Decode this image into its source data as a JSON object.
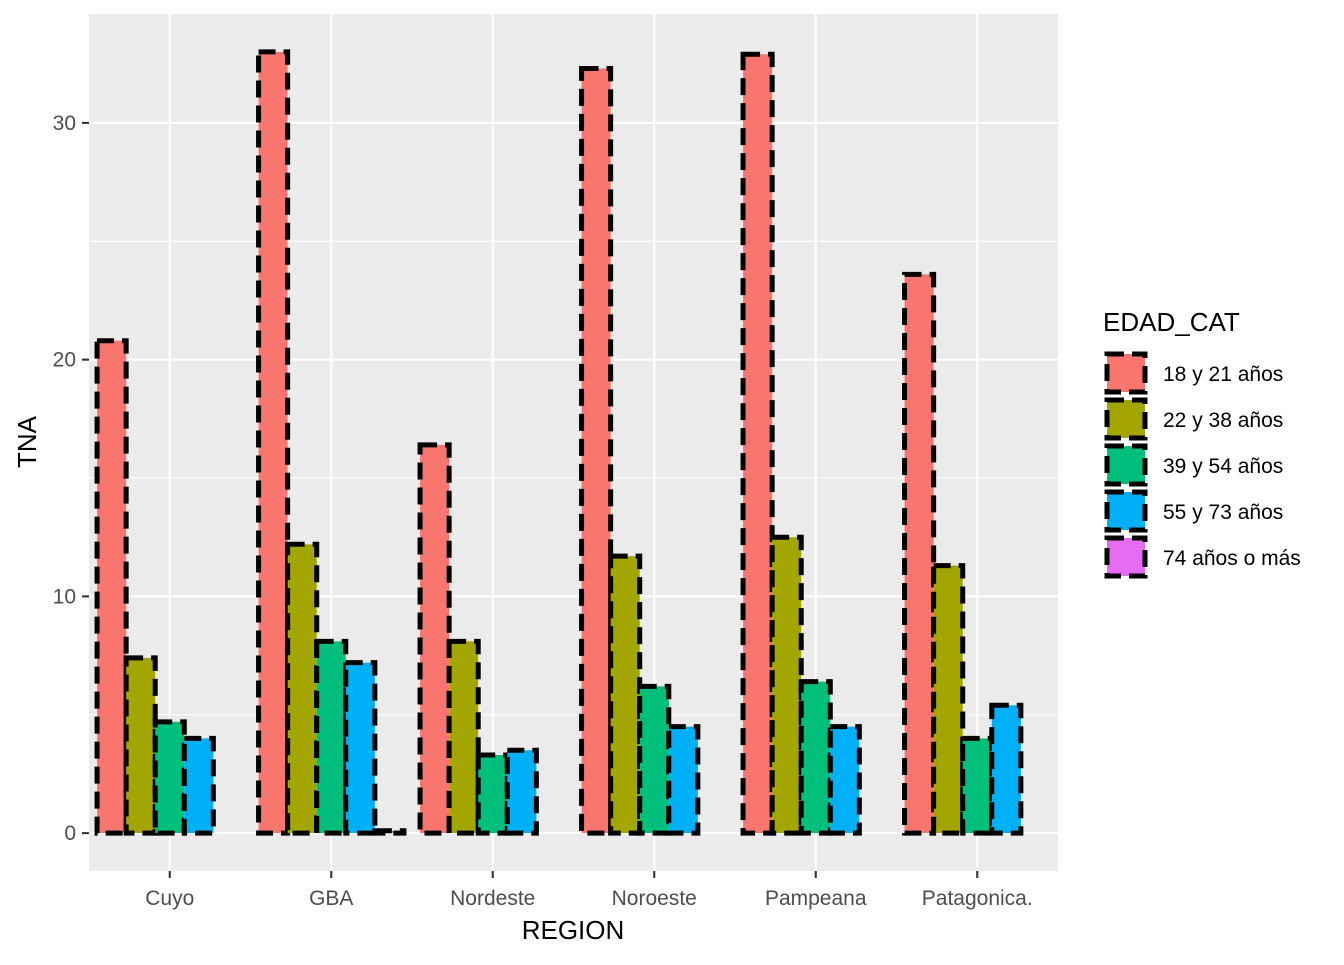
{
  "chart_data": {
    "type": "bar",
    "xlabel": "REGION",
    "ylabel": "TNA",
    "ylim": [
      -1.6,
      34.6
    ],
    "yticks": [
      0,
      10,
      20,
      30
    ],
    "grid": true,
    "bar_outline": "dashed",
    "legend_position": "right",
    "legend_title": "EDAD_CAT",
    "categories": [
      "Cuyo",
      "GBA",
      "Nordeste",
      "Noroeste",
      "Pampeana",
      "Patagonica."
    ],
    "series": [
      {
        "name": "18 y 21 años",
        "color": "#F8766D",
        "values": [
          20.8,
          33.0,
          16.4,
          32.3,
          32.9,
          23.6
        ]
      },
      {
        "name": "22 y 38 años",
        "color": "#A3A500",
        "values": [
          7.4,
          12.2,
          8.1,
          11.7,
          12.5,
          11.3
        ]
      },
      {
        "name": "39 y 54 años",
        "color": "#00BF7D",
        "values": [
          4.7,
          8.1,
          3.3,
          6.2,
          6.4,
          4.0
        ]
      },
      {
        "name": "55 y 73 años",
        "color": "#00B0F6",
        "values": [
          4.0,
          7.2,
          3.5,
          4.5,
          4.5,
          5.4
        ]
      },
      {
        "name": "74 años o más",
        "color": "#E76BF3",
        "values": [
          0,
          0.1,
          0,
          0,
          0,
          0
        ]
      }
    ],
    "background_color": "#EBEBEB",
    "grid_color": "#FFFFFF"
  }
}
